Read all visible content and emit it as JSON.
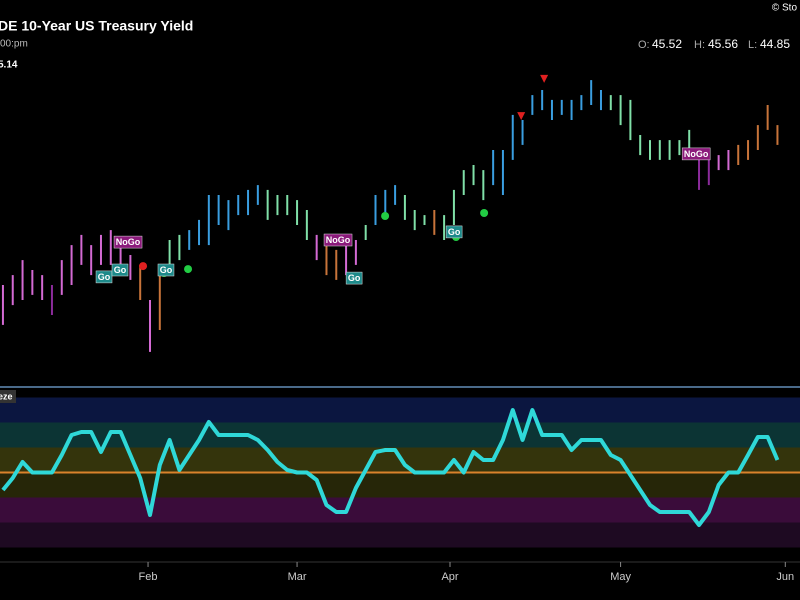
{
  "header": {
    "title": "DE 10-Year US Treasury Yield",
    "time": "00:pm",
    "logo": "© Sto",
    "last_label": "5.14",
    "ohlc": [
      {
        "label": "O:",
        "value": 45.52
      },
      {
        "label": "H:",
        "value": 45.56
      },
      {
        "label": "L:",
        "value": 44.85
      }
    ]
  },
  "chart_data": [
    {
      "type": "hilo",
      "x": [
        0,
        1,
        2,
        3,
        4,
        5,
        6,
        7,
        8,
        9,
        10,
        11,
        12,
        13,
        14,
        15,
        16,
        17,
        18,
        19,
        20,
        21,
        22,
        23,
        24,
        25,
        26,
        27,
        28,
        29,
        30,
        31,
        32,
        33,
        34,
        35,
        36,
        37,
        38,
        39,
        40,
        41,
        42,
        43,
        44,
        45,
        46,
        47,
        48,
        49,
        50,
        51,
        52,
        53,
        54,
        55,
        56,
        57,
        58,
        59,
        60,
        61,
        62,
        63,
        64,
        65,
        66,
        67,
        68,
        69,
        70,
        71,
        72,
        73,
        74,
        75,
        76,
        77,
        78,
        79
      ],
      "high": [
        40.5,
        40.83,
        41.33,
        41.0,
        40.83,
        40.5,
        41.33,
        41.83,
        42.17,
        41.83,
        42.17,
        42.33,
        42.0,
        41.5,
        41.17,
        40.0,
        41.0,
        42.0,
        42.17,
        42.33,
        42.67,
        43.5,
        43.5,
        43.33,
        43.5,
        43.67,
        43.83,
        43.67,
        43.5,
        43.5,
        43.33,
        43.0,
        42.17,
        41.83,
        41.67,
        41.83,
        42.0,
        42.5,
        43.5,
        43.67,
        43.83,
        43.5,
        43.0,
        42.83,
        43.0,
        42.83,
        43.67,
        44.33,
        44.5,
        44.33,
        45.0,
        45.0,
        46.17,
        46.0,
        46.83,
        47.0,
        46.67,
        46.67,
        46.67,
        46.83,
        47.33,
        47.0,
        46.83,
        46.83,
        46.67,
        45.5,
        45.33,
        45.33,
        45.33,
        45.33,
        45.67,
        45.0,
        44.83,
        44.83,
        45.0,
        45.17,
        45.33,
        45.83,
        46.5,
        45.83
      ],
      "low": [
        39.17,
        39.83,
        40.0,
        40.17,
        40.0,
        39.5,
        40.17,
        40.5,
        41.17,
        40.83,
        41.17,
        41.17,
        41.0,
        40.67,
        40.0,
        38.27,
        39.0,
        40.83,
        41.33,
        41.67,
        41.83,
        41.83,
        42.5,
        42.33,
        42.83,
        42.83,
        43.17,
        42.67,
        42.83,
        42.83,
        42.5,
        42.0,
        41.33,
        40.83,
        40.67,
        40.83,
        41.17,
        42.0,
        42.5,
        42.83,
        43.17,
        42.67,
        42.33,
        42.5,
        42.17,
        42.0,
        42.5,
        43.5,
        43.83,
        43.33,
        43.83,
        43.5,
        44.67,
        45.17,
        46.17,
        46.33,
        46.0,
        46.17,
        46.0,
        46.33,
        46.5,
        46.33,
        46.33,
        45.83,
        45.33,
        44.83,
        44.67,
        44.67,
        44.67,
        44.83,
        44.67,
        43.67,
        43.83,
        44.33,
        44.33,
        44.5,
        44.67,
        45.0,
        45.67,
        45.17
      ],
      "color_runs": [
        {
          "from": 0,
          "to": 4,
          "color": "#d46ad4"
        },
        {
          "from": 5,
          "to": 5,
          "color": "#8b2b9b"
        },
        {
          "from": 6,
          "to": 13,
          "color": "#d46ad4"
        },
        {
          "from": 14,
          "to": 14,
          "color": "#c8743a"
        },
        {
          "from": 15,
          "to": 15,
          "color": "#d46ad4"
        },
        {
          "from": 16,
          "to": 16,
          "color": "#c8743a"
        },
        {
          "from": 17,
          "to": 18,
          "color": "#80e0a8"
        },
        {
          "from": 19,
          "to": 26,
          "color": "#3a9ee0"
        },
        {
          "from": 27,
          "to": 31,
          "color": "#80e0a8"
        },
        {
          "from": 32,
          "to": 32,
          "color": "#d46ad4"
        },
        {
          "from": 33,
          "to": 34,
          "color": "#c8743a"
        },
        {
          "from": 35,
          "to": 36,
          "color": "#d46ad4"
        },
        {
          "from": 37,
          "to": 37,
          "color": "#80e0a8"
        },
        {
          "from": 38,
          "to": 40,
          "color": "#3a9ee0"
        },
        {
          "from": 41,
          "to": 43,
          "color": "#80e0a8"
        },
        {
          "from": 44,
          "to": 44,
          "color": "#c8743a"
        },
        {
          "from": 45,
          "to": 49,
          "color": "#80e0a8"
        },
        {
          "from": 50,
          "to": 61,
          "color": "#3a9ee0"
        },
        {
          "from": 62,
          "to": 70,
          "color": "#80e0a8"
        },
        {
          "from": 71,
          "to": 72,
          "color": "#8b2b9b"
        },
        {
          "from": 73,
          "to": 74,
          "color": "#d46ad4"
        },
        {
          "from": 75,
          "to": 79,
          "color": "#c8743a"
        }
      ],
      "labels": [
        {
          "x": 12.76,
          "y": 41.93,
          "text": "NoGo",
          "color": "#8b1a7b"
        },
        {
          "x": 10.31,
          "y": 40.77,
          "text": "Go",
          "color": "#1d8a8a"
        },
        {
          "x": 11.94,
          "y": 41.0,
          "text": "Go",
          "color": "#1d8a8a"
        },
        {
          "x": 16.63,
          "y": 41.0,
          "text": "Go",
          "color": "#1d8a8a"
        },
        {
          "x": 34.18,
          "y": 42.0,
          "text": "NoGo",
          "color": "#8b1a7b"
        },
        {
          "x": 35.82,
          "y": 40.73,
          "text": "Go",
          "color": "#1d8a8a"
        },
        {
          "x": 46.02,
          "y": 42.27,
          "text": "Go",
          "color": "#1d8a8a"
        },
        {
          "x": 70.71,
          "y": 44.87,
          "text": "NoGo",
          "color": "#8b1a7b"
        }
      ],
      "signals": [
        {
          "x": 16.43,
          "y": 40.9,
          "shape": "dot",
          "color": "#22cc44"
        },
        {
          "x": 18.88,
          "y": 41.03,
          "shape": "dot",
          "color": "#22cc44"
        },
        {
          "x": 38.98,
          "y": 42.8,
          "shape": "dot",
          "color": "#22cc44"
        },
        {
          "x": 46.22,
          "y": 42.1,
          "shape": "dot",
          "color": "#22cc44"
        },
        {
          "x": 49.08,
          "y": 42.9,
          "shape": "dot",
          "color": "#22cc44"
        },
        {
          "x": 14.29,
          "y": 41.13,
          "shape": "dot",
          "color": "#e02020"
        },
        {
          "x": 55.2,
          "y": 47.37,
          "shape": "triangle",
          "color": "#e02020"
        },
        {
          "x": 52.86,
          "y": 46.13,
          "shape": "triangle",
          "color": "#e02020"
        }
      ],
      "xlim": [
        -0.3,
        81.3
      ],
      "ylim": [
        37.2,
        48.7
      ]
    },
    {
      "type": "line",
      "label": "eze",
      "x": [
        0,
        1,
        2,
        3,
        4,
        5,
        6,
        7,
        8,
        9,
        10,
        11,
        12,
        13,
        14,
        15,
        16,
        17,
        18,
        19,
        20,
        21,
        22,
        23,
        24,
        25,
        26,
        27,
        28,
        29,
        30,
        31,
        32,
        33,
        34,
        35,
        36,
        37,
        38,
        39,
        40,
        41,
        42,
        43,
        44,
        45,
        46,
        47,
        48,
        49,
        50,
        51,
        52,
        53,
        54,
        55,
        56,
        57,
        58,
        59,
        60,
        61,
        62,
        63,
        64,
        65,
        66,
        67,
        68,
        69,
        70,
        71,
        72,
        73,
        74,
        75,
        76,
        77,
        78,
        79
      ],
      "series": [
        {
          "color": "#2fd8d8",
          "values": [
            -1.4,
            -0.44,
            0.84,
            0,
            0,
            0,
            1.4,
            3.0,
            3.24,
            3.24,
            1.64,
            3.24,
            3.24,
            1.4,
            -0.44,
            -3.4,
            0.6,
            2.6,
            0.2,
            1.4,
            2.6,
            4.04,
            3.0,
            3.0,
            3.0,
            3.0,
            2.6,
            1.8,
            0.84,
            0.2,
            0,
            0,
            -0.6,
            -2.6,
            -3.16,
            -3.16,
            -1.24,
            0.2,
            1.64,
            1.8,
            1.8,
            0.6,
            0,
            0,
            0,
            0,
            1.0,
            0,
            1.64,
            1.0,
            1.0,
            2.6,
            5.0,
            2.6,
            5.0,
            3.0,
            3.0,
            3.0,
            1.8,
            2.6,
            2.6,
            2.6,
            1.4,
            1.0,
            -0.2,
            -1.4,
            -2.6,
            -3.16,
            -3.16,
            -3.16,
            -3.16,
            -4.2,
            -3.16,
            -1.0,
            0,
            0,
            1.4,
            2.84,
            2.84,
            1.0
          ]
        }
      ],
      "bands": [
        {
          "from": 4,
          "to": 6,
          "color": "#0b1640"
        },
        {
          "from": 2,
          "to": 4,
          "color": "#0c3434"
        },
        {
          "from": 0,
          "to": 2,
          "color": "#34340c"
        },
        {
          "from": -2,
          "to": 0,
          "color": "#262608"
        },
        {
          "from": -4,
          "to": -2,
          "color": "#3a0c3a"
        },
        {
          "from": -6,
          "to": -4,
          "color": "#1e0a22"
        }
      ],
      "zero_line": {
        "value": 0,
        "color": "#d9822b"
      },
      "xlim": [
        -0.3,
        81.3
      ],
      "ylim": [
        -7,
        6.6
      ],
      "xticks": [
        {
          "value": 14.8,
          "label": "Feb"
        },
        {
          "value": 30,
          "label": "Mar"
        },
        {
          "value": 45.6,
          "label": "Apr"
        },
        {
          "value": 63,
          "label": "May"
        },
        {
          "value": 79.8,
          "label": "Jun"
        }
      ]
    }
  ]
}
